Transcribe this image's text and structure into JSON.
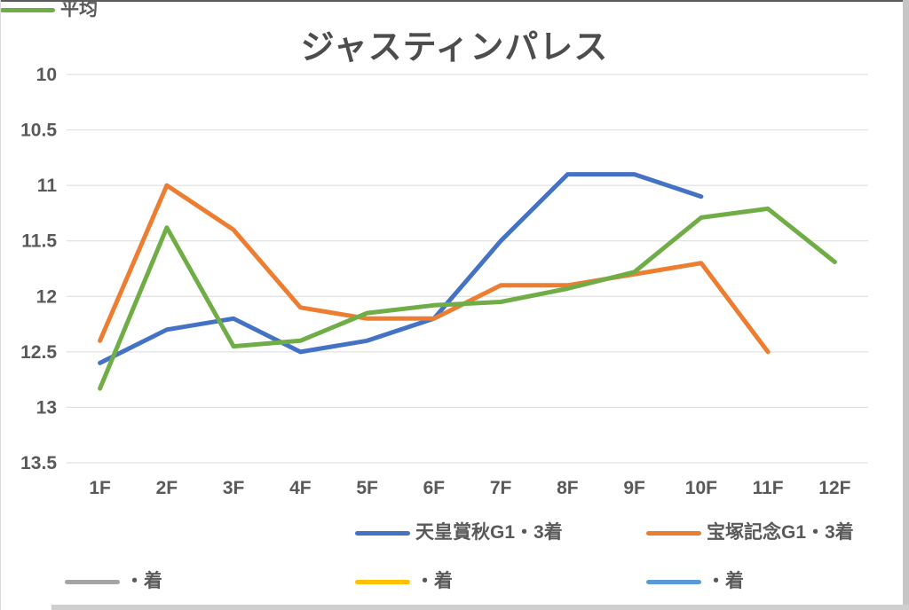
{
  "title": "ジャスティンパレス",
  "chart_data": {
    "type": "line",
    "title": "ジャスティンパレス",
    "categories": [
      "1F",
      "2F",
      "3F",
      "4F",
      "5F",
      "6F",
      "7F",
      "8F",
      "9F",
      "10F",
      "11F",
      "12F"
    ],
    "series": [
      {
        "name": "天皇賞秋G1・3着",
        "color": "#4472C4",
        "values": [
          12.6,
          12.3,
          12.2,
          12.5,
          12.4,
          12.2,
          11.5,
          10.9,
          10.9,
          11.1
        ]
      },
      {
        "name": "宝塚記念G1・3着",
        "color": "#ED7D31",
        "values": [
          12.4,
          11.0,
          11.4,
          12.1,
          12.2,
          12.2,
          11.9,
          11.9,
          11.8,
          11.7,
          12.5
        ]
      },
      {
        "name": "・着",
        "color": "#A5A5A5",
        "values": []
      },
      {
        "name": "・着",
        "color": "#FFC000",
        "values": []
      },
      {
        "name": "・着",
        "color": "#5B9BD5",
        "values": []
      },
      {
        "name": "平均",
        "color": "#70AD47",
        "values": [
          12.83,
          11.38,
          12.45,
          12.4,
          12.15,
          12.08,
          12.05,
          11.93,
          11.78,
          11.29,
          11.21,
          11.69
        ]
      }
    ],
    "y_axis": {
      "min": 10,
      "max": 13.5,
      "reversed": true,
      "ticks": [
        10,
        10.5,
        11,
        11.5,
        12,
        12.5,
        13,
        13.5
      ]
    },
    "xlabel": "",
    "ylabel": "",
    "grid": true,
    "gridline_color": "#D9D9D9",
    "axis_text_color": "#595959",
    "legend_position": "bottom",
    "line_width": 5
  }
}
